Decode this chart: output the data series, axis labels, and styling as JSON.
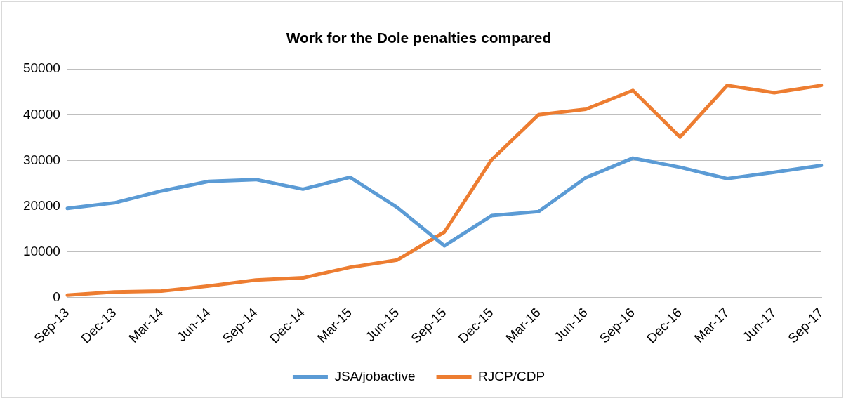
{
  "chart_data": {
    "type": "line",
    "title": "Work for the Dole penalties compared",
    "categories": [
      "Sep-13",
      "Dec-13",
      "Mar-14",
      "Jun-14",
      "Sep-14",
      "Dec-14",
      "Mar-15",
      "Jun-15",
      "Sep-15",
      "Dec-15",
      "Mar-16",
      "Jun-16",
      "Sep-16",
      "Dec-16",
      "Mar-17",
      "Jun-17",
      "Sep-17"
    ],
    "series": [
      {
        "name": "JSA/jobactive",
        "color": "#5b9bd5",
        "values": [
          19500,
          20700,
          23300,
          25400,
          25800,
          23700,
          26300,
          19700,
          11300,
          17900,
          18800,
          26200,
          30500,
          28500,
          26000,
          27400,
          28900
        ]
      },
      {
        "name": "RJCP/CDP",
        "color": "#ed7d31",
        "values": [
          500,
          1200,
          1400,
          2500,
          3800,
          4300,
          6600,
          8200,
          14300,
          30100,
          40000,
          41200,
          45300,
          35100,
          46400,
          44800,
          46400
        ]
      }
    ],
    "ylim": [
      0,
      50000
    ],
    "yticks": [
      0,
      10000,
      20000,
      30000,
      40000,
      50000
    ],
    "grid": "y",
    "legend": "bottom",
    "marker": "none",
    "line_style": "solid"
  }
}
